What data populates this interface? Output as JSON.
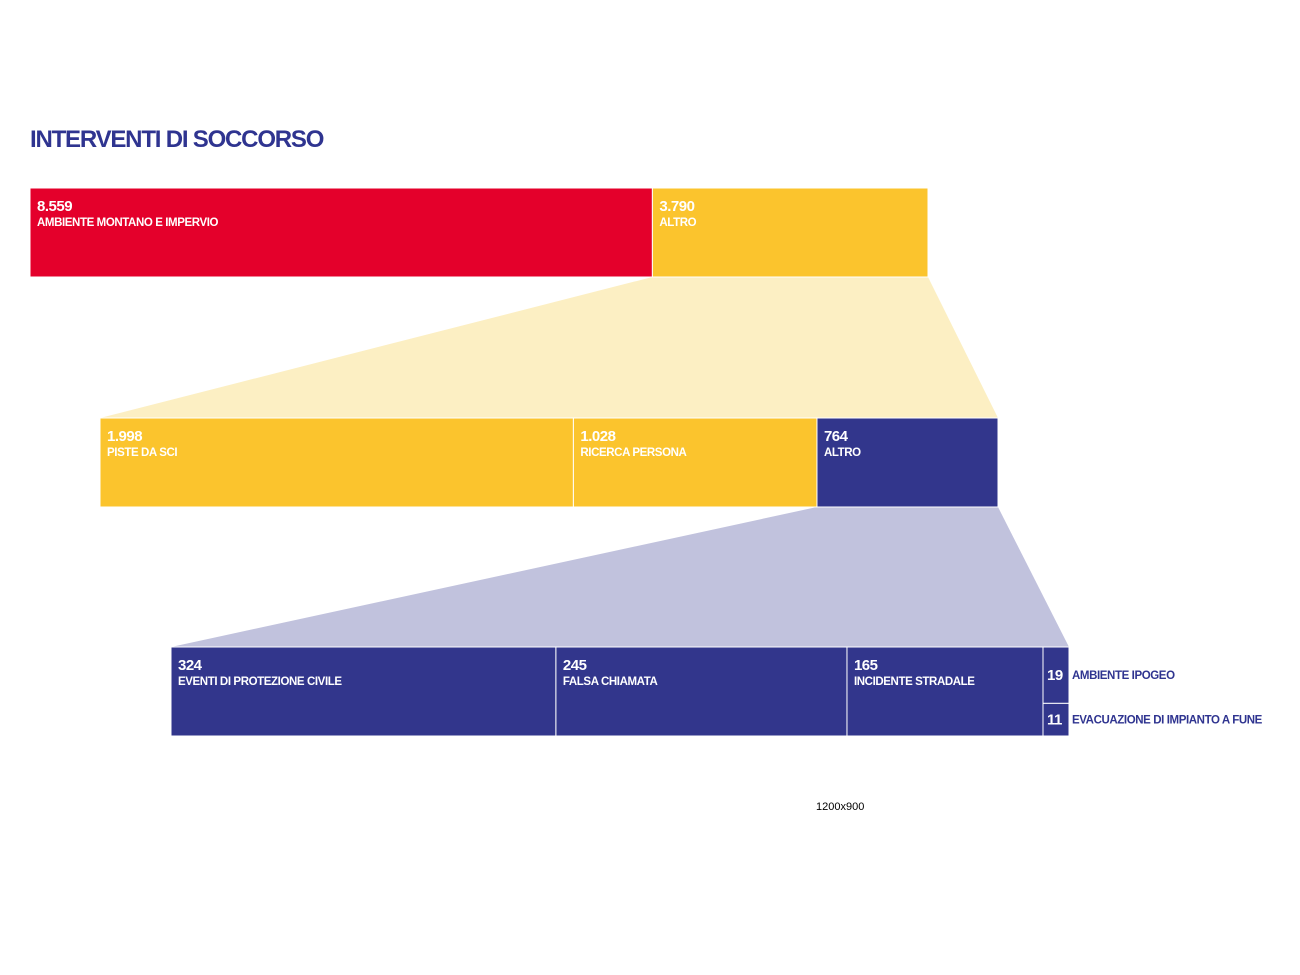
{
  "title": "INTERVENTI DI SOCCORSO",
  "note": "1200x900",
  "colors": {
    "red": "#e4002b",
    "yellow": "#fbc42d",
    "navy": "#32368c",
    "yellow_light": "#fcefc3",
    "navy_light": "#c1c2dd",
    "text_light": "#ffffff",
    "text_navy": "#2f3490"
  },
  "chart_data": {
    "type": "bar",
    "title": "INTERVENTI DI SOCCORSO",
    "levels": [
      {
        "total": 12349,
        "categories": [
          {
            "value": 8559,
            "value_label": "8.559",
            "label": "AMBIENTE MONTANO E IMPERVIO",
            "color": "red"
          },
          {
            "value": 3790,
            "value_label": "3.790",
            "label": "ALTRO",
            "color": "yellow",
            "expands": true
          }
        ]
      },
      {
        "total": 3790,
        "categories": [
          {
            "value": 1998,
            "value_label": "1.998",
            "label": "PISTE DA SCI",
            "color": "yellow"
          },
          {
            "value": 1028,
            "value_label": "1.028",
            "label": "RICERCA PERSONA",
            "color": "yellow"
          },
          {
            "value": 764,
            "value_label": "764",
            "label": "ALTRO",
            "color": "navy",
            "expands": true
          }
        ]
      },
      {
        "total": 764,
        "categories": [
          {
            "value": 324,
            "value_label": "324",
            "label": "EVENTI DI PROTEZIONE CIVILE",
            "color": "navy"
          },
          {
            "value": 245,
            "value_label": "245",
            "label": "FALSA CHIAMATA",
            "color": "navy"
          },
          {
            "value": 165,
            "value_label": "165",
            "label": "INCIDENTE STRADALE",
            "color": "navy"
          },
          {
            "value": 19,
            "value_label": "19",
            "label": "AMBIENTE IPOGEO",
            "color": "navy",
            "stacked": true
          },
          {
            "value": 11,
            "value_label": "11",
            "label": "EVACUAZIONE DI IMPIANTO A FUNE",
            "color": "navy",
            "stacked": true
          }
        ]
      }
    ]
  }
}
